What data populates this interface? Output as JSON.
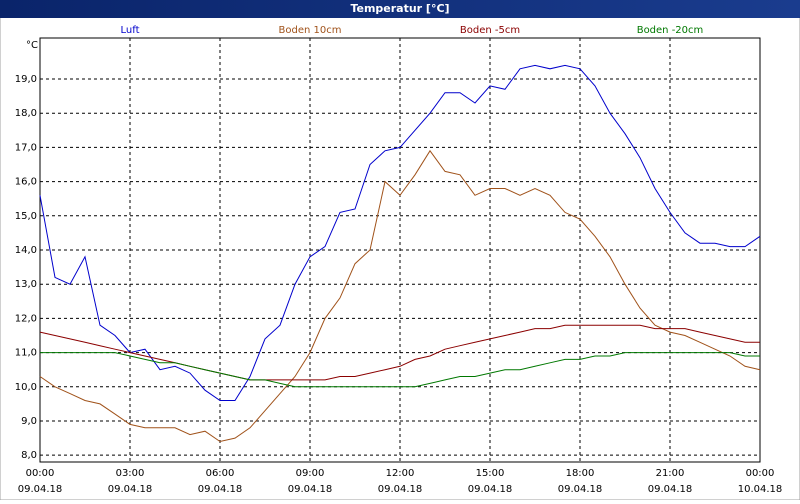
{
  "chart_data": {
    "type": "line",
    "title": "Temperatur [°C]",
    "y_unit": "°C",
    "x": [
      0,
      0.5,
      1,
      1.5,
      2,
      2.5,
      3,
      3.5,
      4,
      4.5,
      5,
      5.5,
      6,
      6.5,
      7,
      7.5,
      8,
      8.5,
      9,
      9.5,
      10,
      10.5,
      11,
      11.5,
      12,
      12.5,
      13,
      13.5,
      14,
      14.5,
      15,
      15.5,
      16,
      16.5,
      17,
      17.5,
      18,
      18.5,
      19,
      19.5,
      20,
      20.5,
      21,
      21.5,
      22,
      22.5,
      23,
      23.5,
      24
    ],
    "series": [
      {
        "name": "Luft",
        "color": "#0000cc",
        "values": [
          15.6,
          13.2,
          13.0,
          13.8,
          11.8,
          11.5,
          11.0,
          11.1,
          10.5,
          10.6,
          10.4,
          9.9,
          9.6,
          9.6,
          10.3,
          11.4,
          11.8,
          13.0,
          13.8,
          14.1,
          15.1,
          15.2,
          16.5,
          16.9,
          17.0,
          17.5,
          18.0,
          18.6,
          18.6,
          18.3,
          18.8,
          18.7,
          19.3,
          19.4,
          19.3,
          19.4,
          19.3,
          18.8,
          18.0,
          17.4,
          16.7,
          15.8,
          15.1,
          14.5,
          14.2,
          14.2,
          14.1,
          14.1,
          14.4
        ]
      },
      {
        "name": "Boden 10cm",
        "color": "#a0521a",
        "values": [
          10.3,
          10.0,
          9.8,
          9.6,
          9.5,
          9.2,
          8.9,
          8.8,
          8.8,
          8.8,
          8.6,
          8.7,
          8.4,
          8.5,
          8.8,
          9.3,
          9.8,
          10.3,
          11.0,
          12.0,
          12.6,
          13.6,
          14.0,
          16.0,
          15.6,
          16.2,
          16.9,
          16.3,
          16.2,
          15.6,
          15.8,
          15.8,
          15.6,
          15.8,
          15.6,
          15.1,
          14.9,
          14.4,
          13.8,
          13.0,
          12.3,
          11.8,
          11.6,
          11.5,
          11.3,
          11.1,
          10.9,
          10.6,
          10.5
        ]
      },
      {
        "name": "Boden -5cm",
        "color": "#8b0000",
        "values": [
          11.6,
          11.5,
          11.4,
          11.3,
          11.2,
          11.1,
          11.0,
          10.9,
          10.8,
          10.7,
          10.6,
          10.5,
          10.4,
          10.3,
          10.2,
          10.2,
          10.2,
          10.2,
          10.2,
          10.2,
          10.3,
          10.3,
          10.4,
          10.5,
          10.6,
          10.8,
          10.9,
          11.1,
          11.2,
          11.3,
          11.4,
          11.5,
          11.6,
          11.7,
          11.7,
          11.8,
          11.8,
          11.8,
          11.8,
          11.8,
          11.8,
          11.7,
          11.7,
          11.7,
          11.6,
          11.5,
          11.4,
          11.3,
          11.3
        ]
      },
      {
        "name": "Boden -20cm",
        "color": "#007800",
        "values": [
          11.0,
          11.0,
          11.0,
          11.0,
          11.0,
          11.0,
          10.9,
          10.8,
          10.7,
          10.7,
          10.6,
          10.5,
          10.4,
          10.3,
          10.2,
          10.2,
          10.1,
          10.0,
          10.0,
          10.0,
          10.0,
          10.0,
          10.0,
          10.0,
          10.0,
          10.0,
          10.1,
          10.2,
          10.3,
          10.3,
          10.4,
          10.5,
          10.5,
          10.6,
          10.7,
          10.8,
          10.8,
          10.9,
          10.9,
          11.0,
          11.0,
          11.0,
          11.0,
          11.0,
          11.0,
          11.0,
          11.0,
          10.9,
          10.9
        ]
      }
    ],
    "xlim": [
      0,
      24
    ],
    "xticks": [
      {
        "value": 0,
        "label": "00:00"
      },
      {
        "value": 3,
        "label": "03:00"
      },
      {
        "value": 6,
        "label": "06:00"
      },
      {
        "value": 9,
        "label": "09:00"
      },
      {
        "value": 12,
        "label": "12:00"
      },
      {
        "value": 15,
        "label": "15:00"
      },
      {
        "value": 18,
        "label": "18:00"
      },
      {
        "value": 21,
        "label": "21:00"
      },
      {
        "value": 24,
        "label": "00:00"
      }
    ],
    "xtick_dates": [
      "09.04.18",
      "09.04.18",
      "09.04.18",
      "09.04.18",
      "09.04.18",
      "09.04.18",
      "09.04.18",
      "09.04.18",
      "10.04.18"
    ],
    "ylim": [
      7.8,
      20.2
    ],
    "yticks": [
      {
        "value": 8,
        "label": "8,0"
      },
      {
        "value": 9,
        "label": "9,0"
      },
      {
        "value": 10,
        "label": "10,0"
      },
      {
        "value": 11,
        "label": "11,0"
      },
      {
        "value": 12,
        "label": "12,0"
      },
      {
        "value": 13,
        "label": "13,0"
      },
      {
        "value": 14,
        "label": "14,0"
      },
      {
        "value": 15,
        "label": "15,0"
      },
      {
        "value": 16,
        "label": "16,0"
      },
      {
        "value": 17,
        "label": "17,0"
      },
      {
        "value": 18,
        "label": "18,0"
      },
      {
        "value": 19,
        "label": "19,0"
      }
    ],
    "grid": true
  }
}
